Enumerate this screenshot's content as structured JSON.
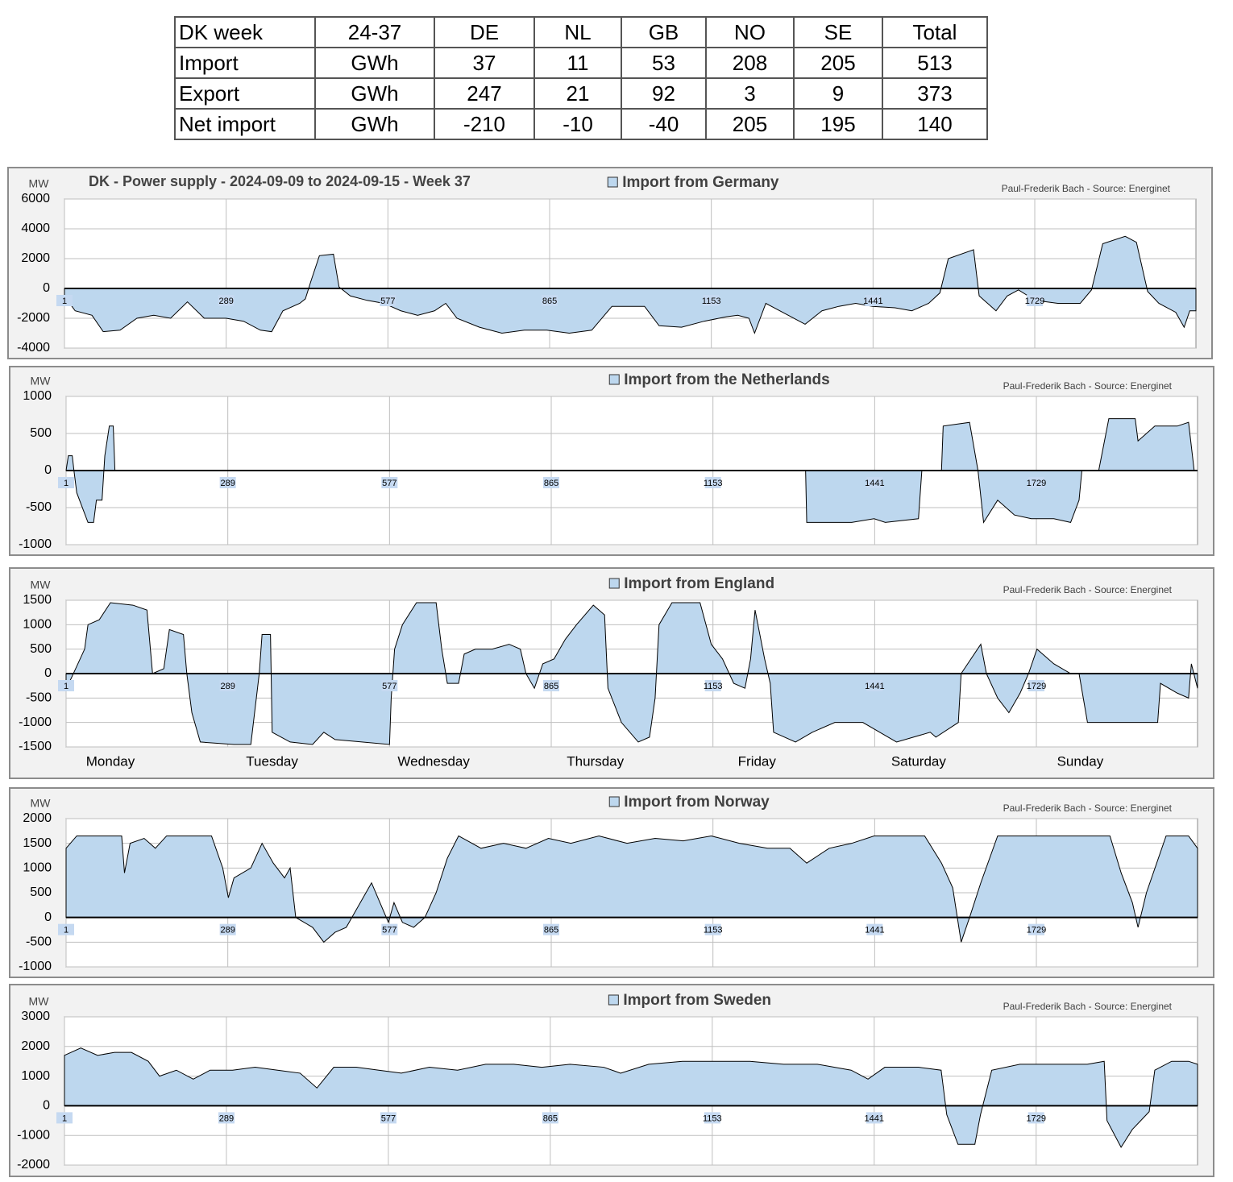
{
  "table": {
    "rows": [
      [
        "DK week",
        "24-37",
        "DE",
        "NL",
        "GB",
        "NO",
        "SE",
        "Total"
      ],
      [
        "Import",
        "GWh",
        37,
        11,
        53,
        208,
        205,
        513
      ],
      [
        "Export",
        "GWh",
        247,
        21,
        92,
        3,
        9,
        373
      ],
      [
        "Net import",
        "GWh",
        -210,
        -10,
        -40,
        205,
        195,
        140
      ]
    ]
  },
  "chart_data": [
    {
      "type": "area",
      "title": "DK - Power supply - 2024-09-09 to 2024-09-15 - Week 37",
      "ylabel": "MW",
      "source": "Paul-Frederik Bach - Source: Energinet",
      "xlim": [
        1,
        2016
      ],
      "xticks": [
        1,
        289,
        577,
        865,
        1153,
        1441,
        1729
      ],
      "ylim": [
        -4000,
        6000
      ],
      "yticks": [
        -4000,
        -2000,
        0,
        2000,
        4000,
        6000
      ],
      "grid": true,
      "x": [
        1,
        20,
        50,
        70,
        100,
        130,
        160,
        190,
        220,
        250,
        289,
        320,
        350,
        370,
        390,
        420,
        430,
        440,
        455,
        480,
        490,
        510,
        540,
        570,
        600,
        630,
        660,
        680,
        700,
        740,
        780,
        820,
        860,
        900,
        940,
        976,
        1034,
        1060,
        1100,
        1140,
        1180,
        1200,
        1220,
        1230,
        1250,
        1290,
        1320,
        1350,
        1380,
        1410,
        1440,
        1480,
        1510,
        1540,
        1560,
        1575,
        1620,
        1630,
        1660,
        1680,
        1700,
        1730,
        1770,
        1810,
        1830,
        1850,
        1890,
        1910,
        1930,
        1950,
        1980,
        1995,
        2005,
        2016
      ],
      "series": [
        {
          "name": "Import from Germany",
          "color": "#bdd7ee",
          "values": [
            -500,
            -1500,
            -1800,
            -2900,
            -2800,
            -2000,
            -1800,
            -2000,
            -900,
            -2000,
            -2000,
            -2200,
            -2800,
            -2900,
            -1500,
            -1000,
            -700,
            500,
            2200,
            2300,
            100,
            -500,
            -800,
            -1000,
            -1500,
            -1800,
            -1500,
            -1000,
            -2000,
            -2600,
            -3000,
            -2800,
            -2800,
            -3000,
            -2800,
            -1200,
            -1200,
            -2500,
            -2600,
            -2200,
            -1900,
            -1800,
            -2000,
            -3000,
            -1000,
            -1800,
            -2400,
            -1500,
            -1200,
            -1000,
            -1200,
            -1300,
            -1500,
            -1000,
            -300,
            2000,
            2600,
            -500,
            -1500,
            -500,
            -100,
            -800,
            -1000,
            -1000,
            -100,
            3000,
            3500,
            3100,
            -200,
            -1000,
            -1600,
            -2600,
            -1500,
            -1500
          ]
        }
      ]
    },
    {
      "type": "area",
      "source": "Paul-Frederik Bach - Source: Energinet",
      "ylabel": "MW",
      "xlim": [
        1,
        2016
      ],
      "xticks": [
        1,
        289,
        577,
        865,
        1153,
        1441,
        1729
      ],
      "ylim": [
        -1000,
        1000
      ],
      "yticks": [
        -1000,
        -500,
        0,
        500,
        1000
      ],
      "grid": true,
      "x": [
        1,
        5,
        12,
        15,
        20,
        40,
        50,
        55,
        65,
        70,
        78,
        85,
        88,
        1318,
        1320,
        1400,
        1440,
        1460,
        1519,
        1525,
        1560,
        1563,
        1610,
        1625,
        1635,
        1660,
        1690,
        1720,
        1760,
        1790,
        1805,
        1810,
        1840,
        1858,
        1905,
        1910,
        1940,
        1980,
        2000,
        2010,
        2016
      ],
      "series": [
        {
          "name": "Import from the Netherlands",
          "color": "#bdd7ee",
          "values": [
            0,
            200,
            200,
            0,
            -300,
            -700,
            -700,
            -400,
            -400,
            200,
            600,
            600,
            0,
            0,
            -700,
            -700,
            -650,
            -700,
            -650,
            0,
            0,
            600,
            650,
            0,
            -700,
            -400,
            -600,
            -650,
            -650,
            -700,
            -400,
            0,
            0,
            700,
            700,
            400,
            600,
            600,
            650,
            0,
            0
          ]
        }
      ]
    },
    {
      "type": "area",
      "source": "Paul-Frederik Bach - Source: Energinet",
      "ylabel": "MW",
      "xlim": [
        1,
        2016
      ],
      "xticks": [
        1,
        289,
        577,
        865,
        1153,
        1441,
        1729
      ],
      "ylim": [
        -1500,
        1500
      ],
      "yticks": [
        -1500,
        -1000,
        -500,
        0,
        500,
        1000,
        1500
      ],
      "grid": true,
      "day_labels": [
        "Monday",
        "Tuesday",
        "Wednesday",
        "Thursday",
        "Friday",
        "Saturday",
        "Sunday"
      ],
      "x": [
        1,
        10,
        34,
        40,
        60,
        80,
        120,
        145,
        155,
        175,
        185,
        210,
        216,
        225,
        240,
        300,
        330,
        345,
        350,
        365,
        368,
        400,
        440,
        460,
        480,
        577,
        580,
        586,
        600,
        625,
        660,
        670,
        680,
        700,
        710,
        730,
        760,
        790,
        810,
        820,
        835,
        850,
        870,
        890,
        910,
        940,
        960,
        966,
        990,
        1020,
        1040,
        1050,
        1057,
        1080,
        1130,
        1150,
        1170,
        1190,
        1210,
        1220,
        1228,
        1245,
        1255,
        1261,
        1300,
        1330,
        1370,
        1420,
        1450,
        1480,
        1510,
        1540,
        1550,
        1590,
        1595,
        1630,
        1640,
        1660,
        1680,
        1700,
        1715,
        1730,
        1760,
        1790,
        1805,
        1820,
        1945,
        1950,
        1980,
        2000,
        2005,
        2016
      ],
      "series": [
        {
          "name": "Import from England",
          "color": "#bdd7ee",
          "values": [
            -300,
            -100,
            500,
            1000,
            1100,
            1450,
            1400,
            1300,
            0,
            100,
            900,
            800,
            0,
            -800,
            -1400,
            -1450,
            -1450,
            0,
            800,
            800,
            -1200,
            -1400,
            -1450,
            -1200,
            -1350,
            -1450,
            -500,
            500,
            1000,
            1450,
            1450,
            500,
            -200,
            -200,
            400,
            500,
            500,
            600,
            500,
            0,
            -300,
            200,
            300,
            700,
            1000,
            1400,
            1200,
            -300,
            -1000,
            -1400,
            -1300,
            -500,
            1000,
            1450,
            1450,
            600,
            300,
            -200,
            -300,
            300,
            1300,
            300,
            -200,
            -1200,
            -1400,
            -1200,
            -1000,
            -1000,
            -1200,
            -1400,
            -1300,
            -1200,
            -1300,
            -1000,
            0,
            600,
            0,
            -500,
            -800,
            -400,
            0,
            500,
            200,
            0,
            0,
            -1000,
            -1000,
            -200,
            -400,
            -500,
            200,
            -300
          ]
        }
      ]
    },
    {
      "type": "area",
      "source": "Paul-Frederik Bach - Source: Energinet",
      "ylabel": "MW",
      "xlim": [
        1,
        2016
      ],
      "xticks": [
        1,
        289,
        577,
        865,
        1153,
        1441,
        1729
      ],
      "ylim": [
        -1000,
        2000
      ],
      "yticks": [
        -1000,
        -500,
        0,
        500,
        1000,
        1500,
        2000
      ],
      "grid": true,
      "x": [
        1,
        20,
        100,
        105,
        115,
        140,
        160,
        180,
        260,
        280,
        290,
        300,
        330,
        350,
        370,
        390,
        400,
        410,
        440,
        460,
        480,
        500,
        520,
        545,
        560,
        575,
        585,
        600,
        620,
        640,
        660,
        680,
        700,
        740,
        780,
        820,
        860,
        900,
        950,
        1000,
        1050,
        1100,
        1150,
        1200,
        1250,
        1290,
        1320,
        1360,
        1400,
        1440,
        1530,
        1560,
        1580,
        1595,
        1610,
        1630,
        1660,
        1860,
        1880,
        1900,
        1910,
        1925,
        1960,
        2000,
        2016
      ],
      "series": [
        {
          "name": "Import from Norway",
          "color": "#bdd7ee",
          "values": [
            1400,
            1650,
            1650,
            900,
            1500,
            1600,
            1400,
            1650,
            1650,
            1000,
            400,
            800,
            1000,
            1500,
            1100,
            800,
            1000,
            0,
            -200,
            -500,
            -300,
            -200,
            200,
            700,
            300,
            -100,
            300,
            -100,
            -200,
            0,
            500,
            1200,
            1650,
            1400,
            1500,
            1400,
            1600,
            1500,
            1650,
            1500,
            1600,
            1550,
            1650,
            1500,
            1400,
            1400,
            1100,
            1400,
            1500,
            1650,
            1650,
            1100,
            600,
            -500,
            0,
            700,
            1650,
            1650,
            900,
            300,
            -200,
            500,
            1650,
            1650,
            1400
          ]
        }
      ]
    },
    {
      "type": "area",
      "source": "Paul-Frederik Bach - Source: Energinet",
      "ylabel": "MW",
      "xlim": [
        1,
        2016
      ],
      "xticks": [
        1,
        289,
        577,
        865,
        1153,
        1441,
        1729
      ],
      "ylim": [
        -2000,
        3000
      ],
      "yticks": [
        -2000,
        -1000,
        0,
        1000,
        2000,
        3000
      ],
      "grid": true,
      "x": [
        1,
        30,
        60,
        90,
        120,
        150,
        170,
        200,
        230,
        260,
        300,
        340,
        380,
        420,
        450,
        480,
        520,
        560,
        600,
        650,
        700,
        750,
        800,
        850,
        900,
        960,
        990,
        1040,
        1100,
        1160,
        1220,
        1280,
        1340,
        1400,
        1430,
        1460,
        1520,
        1560,
        1570,
        1590,
        1620,
        1630,
        1650,
        1700,
        1760,
        1820,
        1850,
        1855,
        1880,
        1900,
        1920,
        1930,
        1940,
        1970,
        2000,
        2016
      ],
      "series": [
        {
          "name": "Import from Sweden",
          "color": "#bdd7ee",
          "values": [
            1700,
            1950,
            1700,
            1800,
            1800,
            1500,
            1000,
            1200,
            900,
            1200,
            1200,
            1300,
            1200,
            1100,
            600,
            1300,
            1300,
            1200,
            1100,
            1300,
            1200,
            1400,
            1400,
            1300,
            1400,
            1300,
            1100,
            1400,
            1500,
            1500,
            1500,
            1400,
            1400,
            1200,
            900,
            1300,
            1300,
            1200,
            -300,
            -1300,
            -1300,
            -300,
            1200,
            1400,
            1400,
            1400,
            1500,
            -500,
            -1400,
            -800,
            -400,
            -200,
            1200,
            1500,
            1500,
            1400
          ]
        }
      ]
    }
  ]
}
